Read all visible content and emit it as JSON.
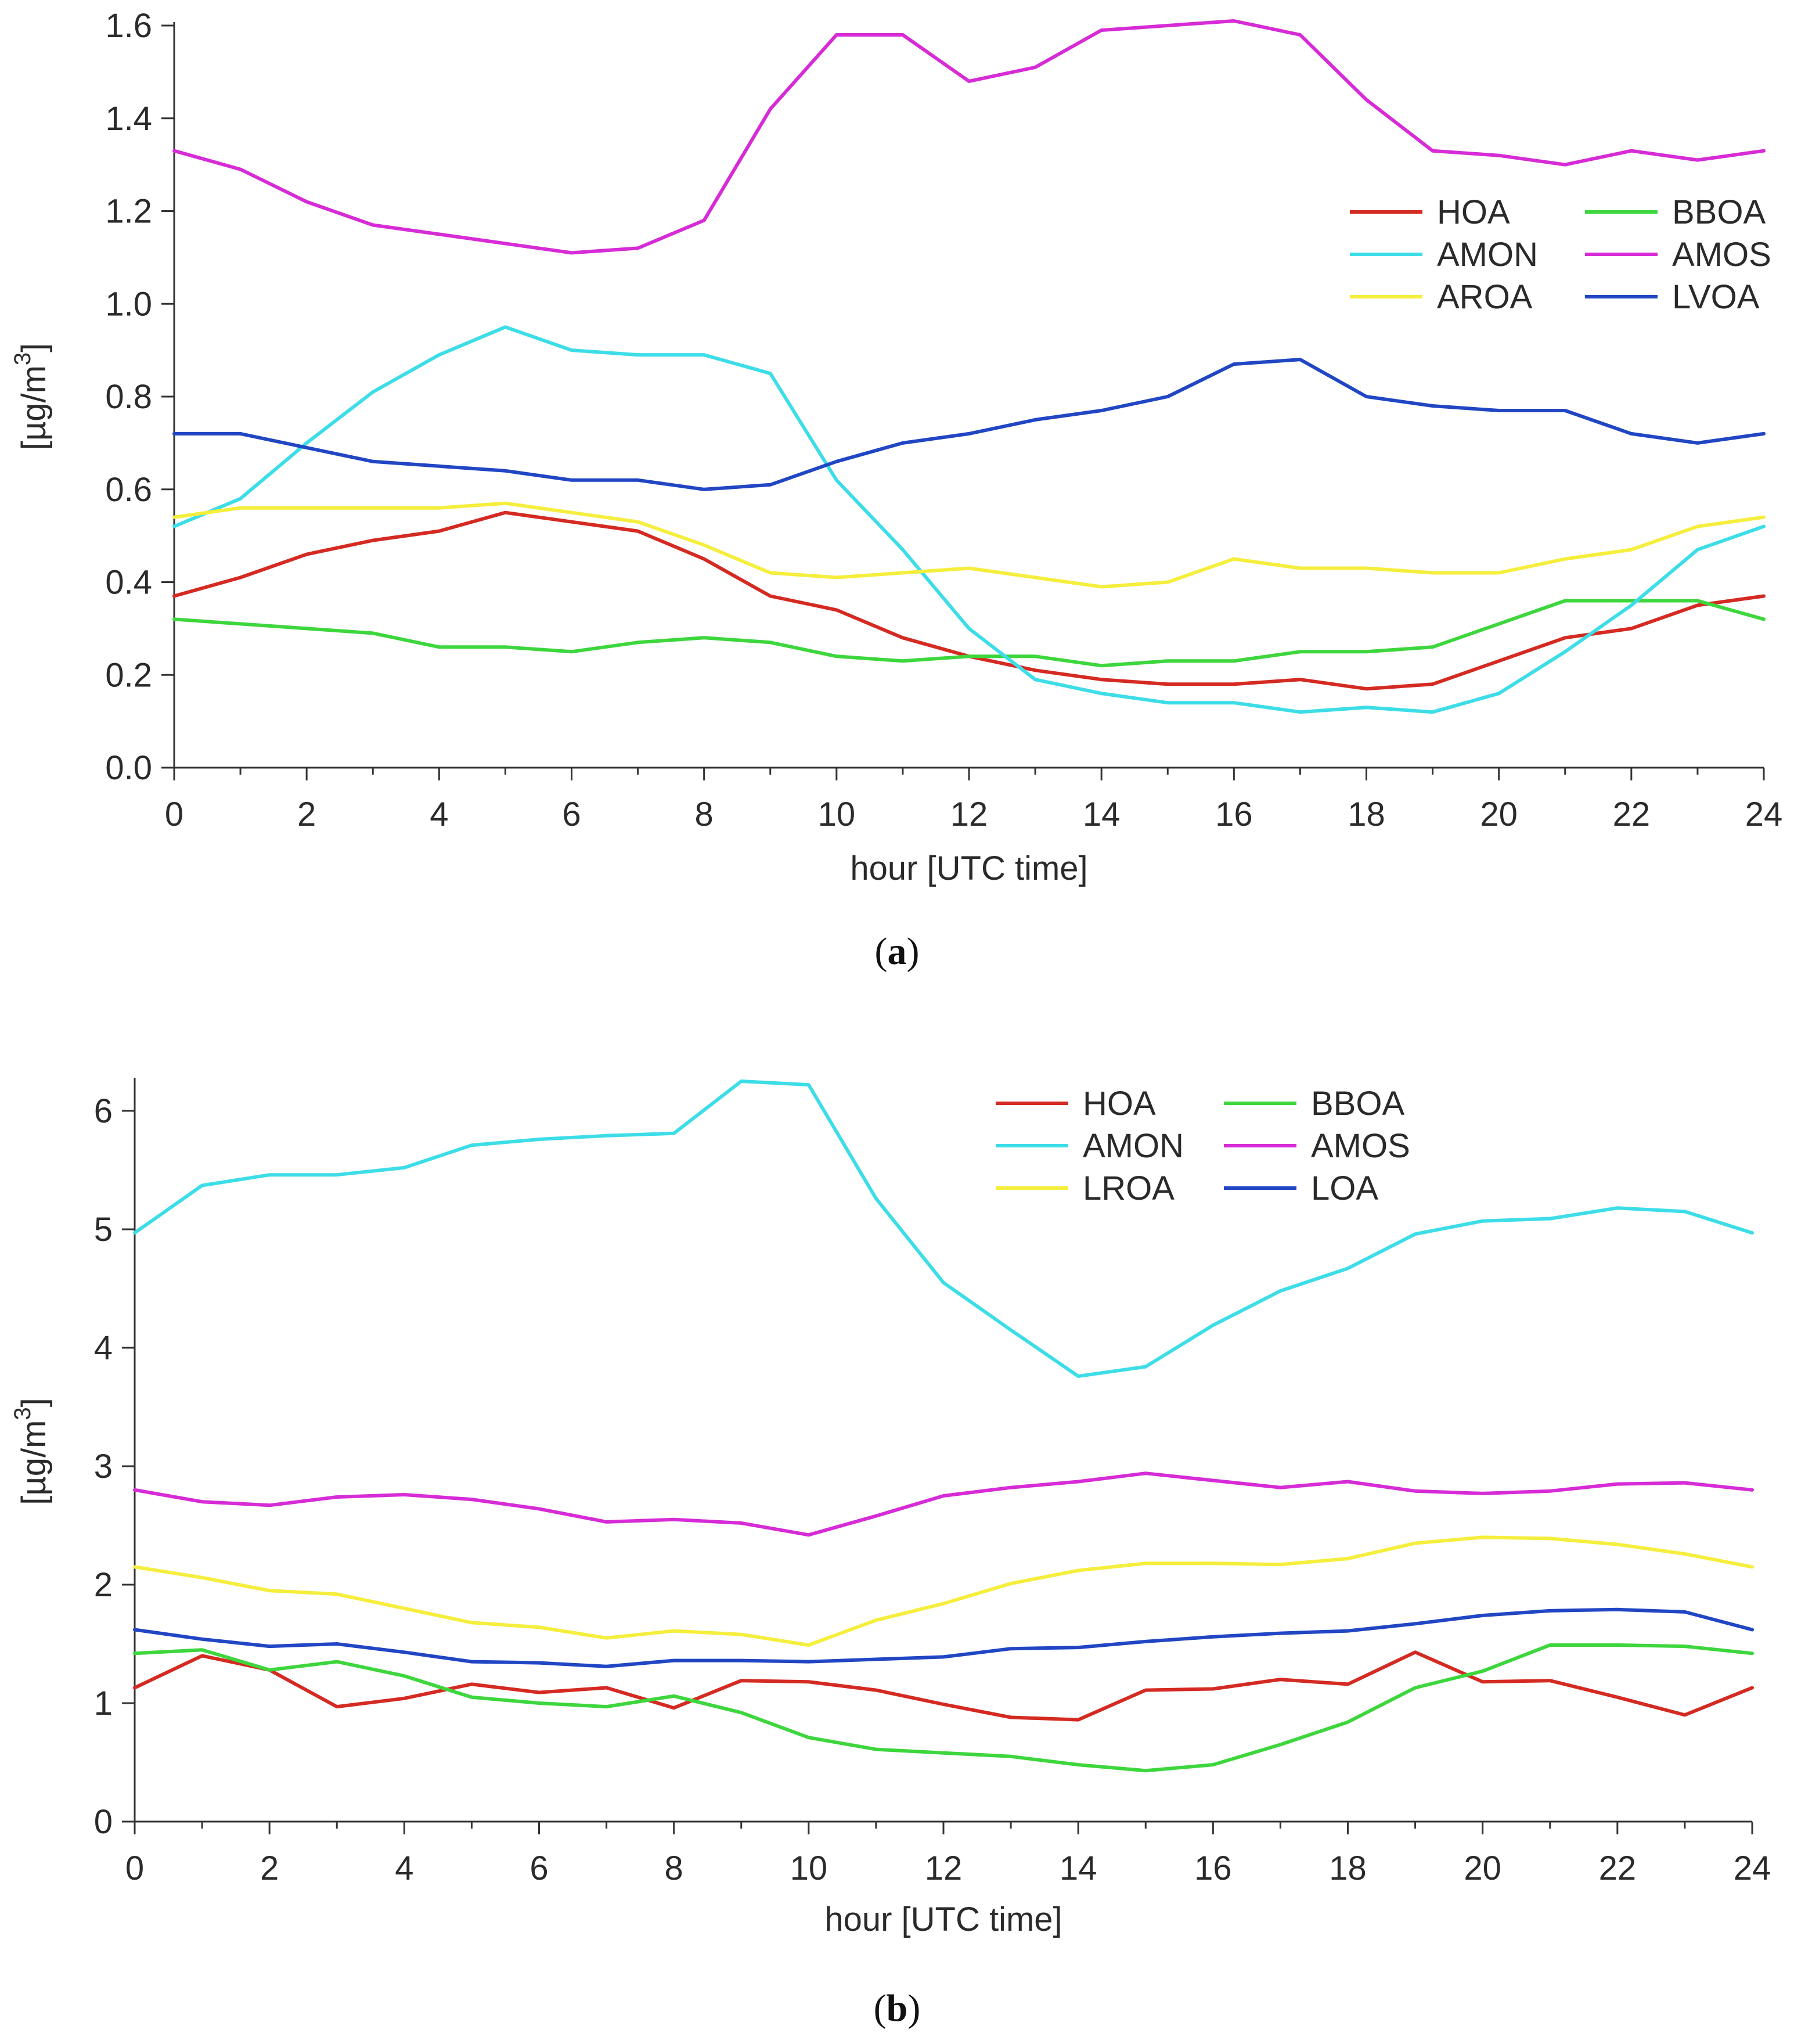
{
  "chart_data": [
    {
      "type": "line",
      "panel_label": "a",
      "xlabel": "hour [UTC time]",
      "ylabel": "[µg/m^3]",
      "ylabel_main": "[µg/m",
      "ylabel_sup": "3",
      "ylabel_tail": "]",
      "xlim": [
        0,
        24
      ],
      "ylim": [
        0,
        1.6
      ],
      "xticks": [
        0,
        2,
        4,
        6,
        8,
        10,
        12,
        14,
        16,
        18,
        20,
        22,
        24
      ],
      "xtick_labels": [
        "0",
        "2",
        "4",
        "6",
        "8",
        "10",
        "12",
        "14",
        "16",
        "18",
        "20",
        "22",
        "24"
      ],
      "yticks": [
        0,
        0.2,
        0.4,
        0.6,
        0.8,
        1.0,
        1.2,
        1.4,
        1.6
      ],
      "ytick_labels": [
        "0.0",
        "0.2",
        "0.4",
        "0.6",
        "0.8",
        "1.0",
        "1.2",
        "1.4",
        "1.6"
      ],
      "legend_position": "top-right",
      "x": [
        0,
        1,
        2,
        3,
        4,
        5,
        6,
        7,
        8,
        9,
        10,
        11,
        12,
        13,
        14,
        15,
        16,
        17,
        18,
        19,
        20,
        21,
        22,
        23,
        24
      ],
      "series": [
        {
          "name": "HOA",
          "color": "#d42a22",
          "values": [
            0.37,
            0.41,
            0.46,
            0.49,
            0.51,
            0.55,
            0.53,
            0.51,
            0.45,
            0.37,
            0.34,
            0.28,
            0.24,
            0.21,
            0.19,
            0.18,
            0.18,
            0.19,
            0.17,
            0.18,
            0.23,
            0.28,
            0.3,
            0.35,
            0.37
          ]
        },
        {
          "name": "BBOA",
          "color": "#3dd63d",
          "values": [
            0.32,
            0.31,
            0.3,
            0.29,
            0.26,
            0.26,
            0.25,
            0.27,
            0.28,
            0.27,
            0.24,
            0.23,
            0.24,
            0.24,
            0.22,
            0.23,
            0.23,
            0.25,
            0.25,
            0.26,
            0.31,
            0.36,
            0.36,
            0.36,
            0.32
          ]
        },
        {
          "name": "AMON",
          "color": "#3ddde8",
          "values": [
            0.52,
            0.58,
            0.7,
            0.81,
            0.89,
            0.95,
            0.9,
            0.89,
            0.89,
            0.85,
            0.62,
            0.47,
            0.3,
            0.19,
            0.16,
            0.14,
            0.14,
            0.12,
            0.13,
            0.12,
            0.16,
            0.25,
            0.35,
            0.47,
            0.52
          ]
        },
        {
          "name": "AMOS",
          "color": "#d62bd6",
          "values": [
            1.33,
            1.29,
            1.22,
            1.17,
            1.15,
            1.13,
            1.11,
            1.12,
            1.18,
            1.42,
            1.58,
            1.58,
            1.48,
            1.51,
            1.59,
            1.6,
            1.61,
            1.58,
            1.44,
            1.33,
            1.32,
            1.3,
            1.33,
            1.31,
            1.33
          ]
        },
        {
          "name": "AROA",
          "color": "#f5ee3c",
          "values": [
            0.54,
            0.56,
            0.56,
            0.56,
            0.56,
            0.57,
            0.55,
            0.53,
            0.48,
            0.42,
            0.41,
            0.42,
            0.43,
            0.41,
            0.39,
            0.4,
            0.45,
            0.43,
            0.43,
            0.42,
            0.42,
            0.45,
            0.47,
            0.52,
            0.54
          ]
        },
        {
          "name": "LVOA",
          "color": "#2146c4",
          "values": [
            0.72,
            0.72,
            0.69,
            0.66,
            0.65,
            0.64,
            0.62,
            0.62,
            0.6,
            0.61,
            0.66,
            0.7,
            0.72,
            0.75,
            0.77,
            0.8,
            0.87,
            0.88,
            0.8,
            0.78,
            0.77,
            0.77,
            0.72,
            0.7,
            0.72
          ]
        }
      ]
    },
    {
      "type": "line",
      "panel_label": "b",
      "xlabel": "hour [UTC time]",
      "ylabel": "[µg/m^3]",
      "ylabel_main": "[µg/m",
      "ylabel_sup": "3",
      "ylabel_tail": "]",
      "xlim": [
        0,
        24
      ],
      "ylim": [
        0,
        6.25
      ],
      "xticks": [
        0,
        2,
        4,
        6,
        8,
        10,
        12,
        14,
        16,
        18,
        20,
        22,
        24
      ],
      "xtick_labels": [
        "0",
        "2",
        "4",
        "6",
        "8",
        "10",
        "12",
        "14",
        "16",
        "18",
        "20",
        "22",
        "24"
      ],
      "yticks": [
        0,
        1,
        2,
        3,
        4,
        5,
        6
      ],
      "ytick_labels": [
        "0",
        "1",
        "2",
        "3",
        "4",
        "5",
        "6"
      ],
      "legend_position": "top-right",
      "x": [
        0,
        1,
        2,
        3,
        4,
        5,
        6,
        7,
        8,
        9,
        10,
        11,
        12,
        13,
        14,
        15,
        16,
        17,
        18,
        19,
        20,
        21,
        22,
        23,
        24
      ],
      "series": [
        {
          "name": "HOA",
          "color": "#d42a22",
          "values": [
            1.13,
            1.4,
            1.28,
            0.97,
            1.04,
            1.16,
            1.09,
            1.13,
            0.96,
            1.19,
            1.18,
            1.11,
            0.99,
            0.88,
            0.86,
            1.11,
            1.12,
            1.2,
            1.16,
            1.43,
            1.18,
            1.19,
            1.05,
            0.9,
            1.13
          ]
        },
        {
          "name": "BBOA",
          "color": "#3dd63d",
          "values": [
            1.42,
            1.45,
            1.28,
            1.35,
            1.23,
            1.05,
            1.0,
            0.97,
            1.06,
            0.92,
            0.71,
            0.61,
            0.58,
            0.55,
            0.48,
            0.43,
            0.48,
            0.65,
            0.84,
            1.13,
            1.27,
            1.49,
            1.49,
            1.48,
            1.42
          ]
        },
        {
          "name": "AMON",
          "color": "#3ddde8",
          "values": [
            4.97,
            5.37,
            5.46,
            5.46,
            5.52,
            5.71,
            5.76,
            5.79,
            5.81,
            6.25,
            6.22,
            5.26,
            4.55,
            4.15,
            3.76,
            3.84,
            4.19,
            4.48,
            4.67,
            4.96,
            5.07,
            5.09,
            5.18,
            5.15,
            4.97
          ]
        },
        {
          "name": "AMOS",
          "color": "#d62bd6",
          "values": [
            2.8,
            2.7,
            2.67,
            2.74,
            2.76,
            2.72,
            2.64,
            2.53,
            2.55,
            2.52,
            2.42,
            2.58,
            2.75,
            2.82,
            2.87,
            2.94,
            2.88,
            2.82,
            2.87,
            2.79,
            2.77,
            2.79,
            2.85,
            2.86,
            2.8
          ]
        },
        {
          "name": "LROA",
          "color": "#f5ee3c",
          "values": [
            2.15,
            2.06,
            1.95,
            1.92,
            1.8,
            1.68,
            1.64,
            1.55,
            1.61,
            1.58,
            1.49,
            1.7,
            1.84,
            2.01,
            2.12,
            2.18,
            2.18,
            2.17,
            2.22,
            2.35,
            2.4,
            2.39,
            2.34,
            2.26,
            2.15
          ]
        },
        {
          "name": "LOA",
          "color": "#2146c4",
          "values": [
            1.62,
            1.54,
            1.48,
            1.5,
            1.43,
            1.35,
            1.34,
            1.31,
            1.36,
            1.36,
            1.35,
            1.37,
            1.39,
            1.46,
            1.47,
            1.52,
            1.56,
            1.59,
            1.61,
            1.67,
            1.74,
            1.78,
            1.79,
            1.77,
            1.62
          ]
        }
      ]
    }
  ]
}
